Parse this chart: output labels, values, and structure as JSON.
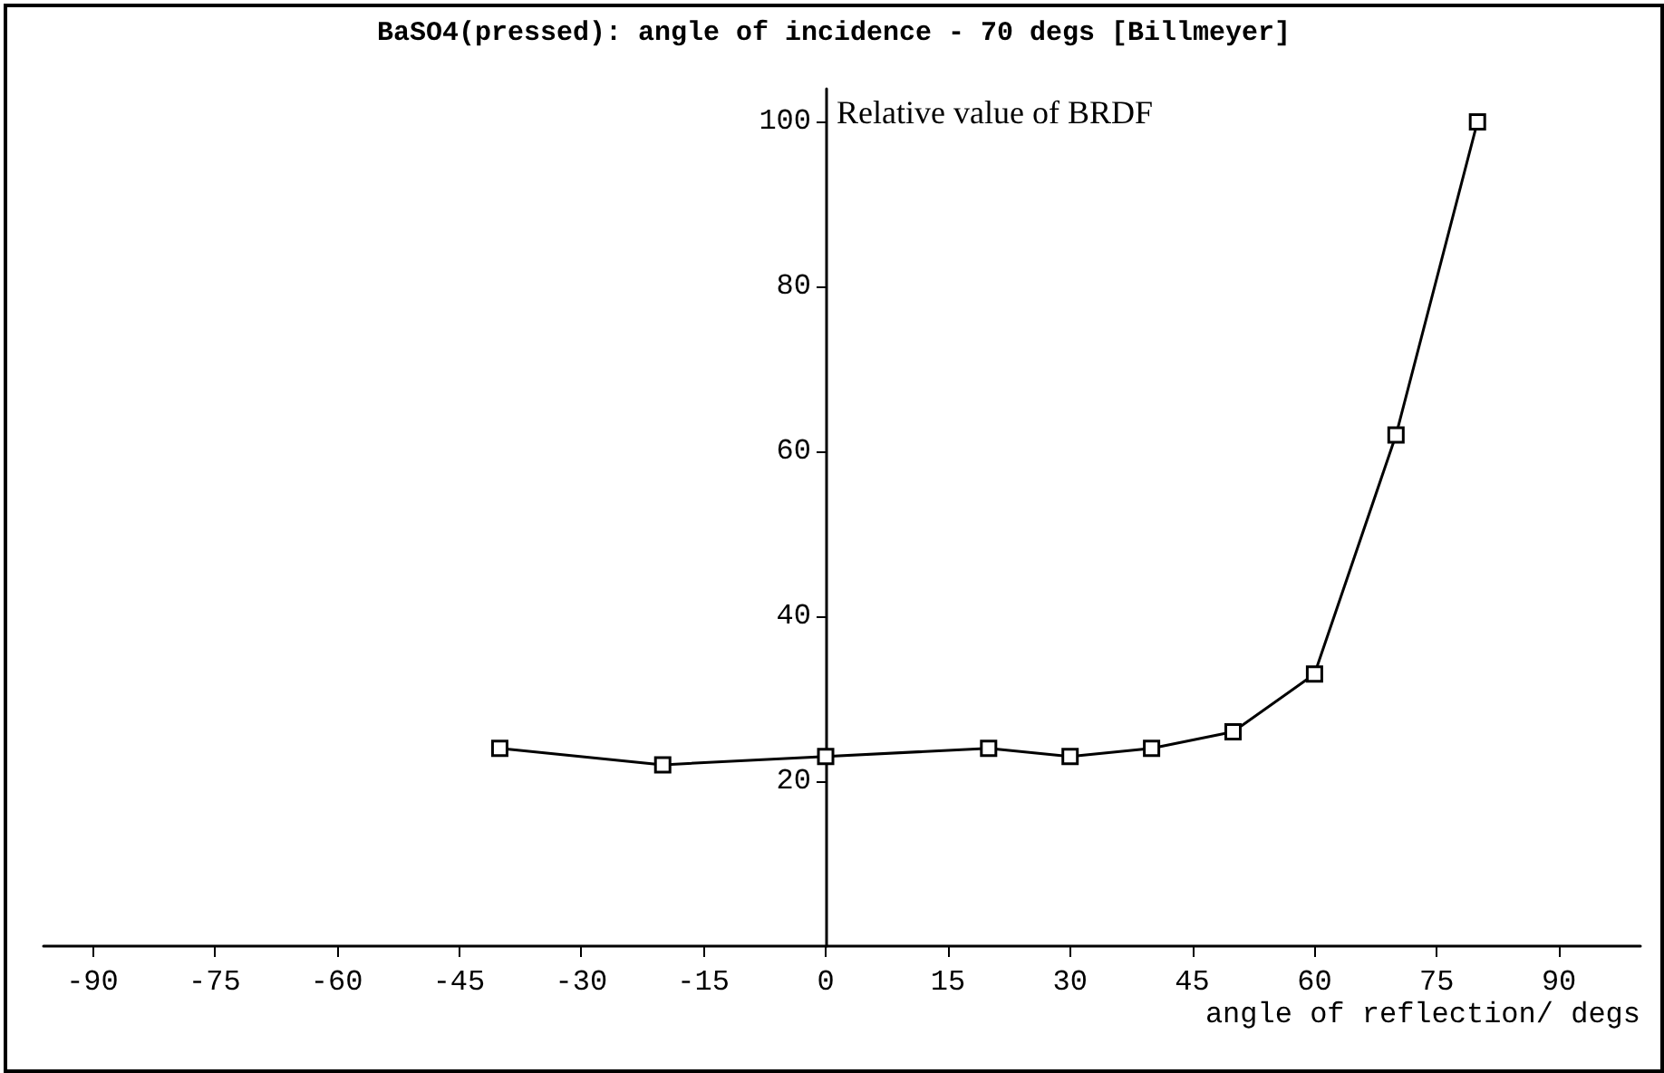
{
  "chart_data": {
    "type": "line",
    "title": "BaSO4(pressed): angle of incidence - 70 degs [Billmeyer]",
    "xlabel": "angle of reflection/ degs",
    "ylabel": "Relative value of BRDF",
    "x": [
      -40,
      -20,
      0,
      20,
      30,
      40,
      50,
      60,
      70,
      80
    ],
    "series": [
      {
        "color": "#000000",
        "values": [
          24,
          22,
          23,
          24,
          23,
          24,
          26,
          33,
          62,
          100
        ]
      }
    ],
    "xlim": [
      -96,
      100
    ],
    "xticks": [
      -90,
      -75,
      -60,
      -45,
      -30,
      -15,
      0,
      15,
      30,
      45,
      60,
      75,
      90
    ],
    "ylim": [
      0,
      104
    ],
    "yticks": [
      20,
      40,
      60,
      80,
      100
    ],
    "marker": "square",
    "line_style": "solid"
  }
}
